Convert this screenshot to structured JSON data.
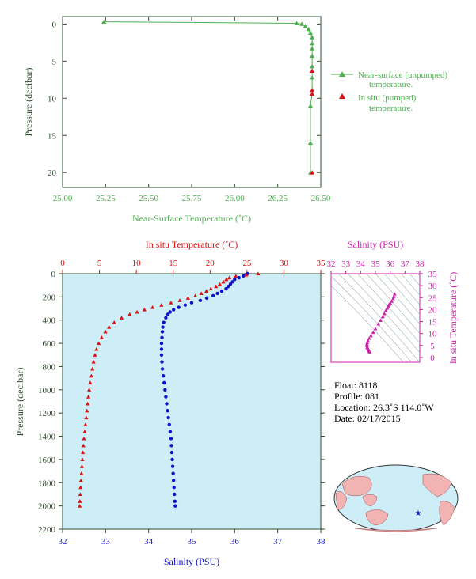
{
  "colors": {
    "green": "#4caf50",
    "red": "#dd1111",
    "blue": "#1111cc",
    "magenta": "#cc22aa",
    "axis_dark": "#2f4f2f",
    "plot_bg": "#cdeef7",
    "ts_line": "#9fb0b8"
  },
  "chart_data": [
    {
      "type": "line",
      "id": "near-surface",
      "xlabel": "Near-Surface Temperature (˚C)",
      "ylabel": "Pressure (decibar)",
      "xlim": [
        25.0,
        26.5
      ],
      "ylim": [
        22,
        -1
      ],
      "xticks": [
        "25.00",
        "25.25",
        "25.50",
        "25.75",
        "26.00",
        "26.25",
        "26.50"
      ],
      "xtick_values": [
        25.0,
        25.25,
        25.5,
        25.75,
        26.0,
        26.25,
        26.5
      ],
      "yticks": [
        "0",
        "5",
        "10",
        "15",
        "20"
      ],
      "ytick_values": [
        0,
        5,
        10,
        15,
        20
      ],
      "series": [
        {
          "name": "Near-surface (unpumped) temperature.",
          "marker": "triangle",
          "line": true,
          "color": "green",
          "x": [
            25.24,
            26.36,
            26.39,
            26.41,
            26.43,
            26.44,
            26.45,
            26.45,
            26.45,
            26.45,
            26.45,
            26.45,
            26.45,
            26.44,
            26.44,
            26.44
          ],
          "y": [
            -0.3,
            -0.1,
            0.0,
            0.3,
            0.7,
            1.2,
            1.8,
            2.6,
            3.3,
            4.3,
            5.7,
            7.2,
            9.4,
            11.0,
            16.0,
            20.0
          ]
        },
        {
          "name": "In situ (pumped) temperature.",
          "marker": "triangle",
          "line": false,
          "color": "red",
          "x": [
            26.45,
            26.45,
            26.45,
            26.45
          ],
          "y": [
            6.3,
            8.9,
            9.4,
            20.0
          ]
        }
      ],
      "legend": [
        "Near-surface (unpumped)",
        "temperature.",
        "In situ (pumped)",
        "temperature."
      ]
    },
    {
      "type": "line",
      "id": "profile",
      "title_top": "In situ Temperature (˚C)",
      "xlabel": "Salinity (PSU)",
      "ylabel": "Pressure (decibar)",
      "temp_lim": [
        0,
        35
      ],
      "sal_lim": [
        32,
        38
      ],
      "ylim": [
        0,
        2200
      ],
      "temp_ticks": [
        "0",
        "5",
        "10",
        "15",
        "20",
        "25",
        "30",
        "35"
      ],
      "temp_tick_values": [
        0,
        5,
        10,
        15,
        20,
        25,
        30,
        35
      ],
      "sal_ticks": [
        "32",
        "33",
        "34",
        "35",
        "36",
        "37",
        "38"
      ],
      "sal_tick_values": [
        32,
        33,
        34,
        35,
        36,
        37,
        38
      ],
      "yticks": [
        "0",
        "200",
        "400",
        "600",
        "800",
        "1000",
        "1200",
        "1400",
        "1600",
        "1800",
        "2000",
        "2200"
      ],
      "ytick_values": [
        0,
        200,
        400,
        600,
        800,
        1000,
        1200,
        1400,
        1600,
        1800,
        2000,
        2200
      ],
      "series": [
        {
          "name": "In situ Temperature (˚C)",
          "color": "red",
          "marker": "triangle",
          "p": [
            0,
            10,
            20,
            35,
            50,
            70,
            90,
            110,
            130,
            150,
            170,
            190,
            210,
            230,
            250,
            270,
            290,
            310,
            330,
            350,
            380,
            420,
            460,
            500,
            550,
            600,
            650,
            700,
            760,
            820,
            880,
            940,
            1000,
            1060,
            1120,
            1180,
            1240,
            1300,
            1360,
            1420,
            1480,
            1540,
            1600,
            1660,
            1720,
            1780,
            1840,
            1900,
            1960,
            2000
          ],
          "v": [
            26.5,
            24.9,
            23.5,
            22.6,
            22.2,
            21.8,
            21.3,
            20.8,
            20.1,
            19.5,
            18.8,
            18.0,
            17.0,
            15.9,
            14.7,
            13.4,
            12.2,
            11.1,
            10.1,
            9.1,
            8.0,
            7.0,
            6.3,
            5.8,
            5.3,
            4.9,
            4.6,
            4.4,
            4.2,
            4.05,
            3.9,
            3.75,
            3.6,
            3.5,
            3.4,
            3.3,
            3.2,
            3.1,
            3.0,
            2.9,
            2.82,
            2.75,
            2.68,
            2.62,
            2.56,
            2.5,
            2.45,
            2.4,
            2.35,
            2.32
          ]
        },
        {
          "name": "Salinity (PSU)",
          "color": "blue",
          "marker": "circle",
          "p": [
            0,
            10,
            20,
            35,
            50,
            70,
            90,
            110,
            130,
            150,
            170,
            190,
            210,
            230,
            250,
            270,
            290,
            310,
            330,
            350,
            380,
            420,
            460,
            500,
            550,
            600,
            650,
            700,
            760,
            820,
            880,
            940,
            1000,
            1060,
            1120,
            1180,
            1240,
            1300,
            1360,
            1420,
            1480,
            1540,
            1600,
            1660,
            1720,
            1780,
            1840,
            1900,
            1960,
            2000
          ],
          "v": [
            36.3,
            36.25,
            36.2,
            36.1,
            36.0,
            35.95,
            35.9,
            35.85,
            35.8,
            35.7,
            35.6,
            35.5,
            35.35,
            35.2,
            35.0,
            34.85,
            34.7,
            34.58,
            34.5,
            34.45,
            34.4,
            34.35,
            34.33,
            34.32,
            34.31,
            34.3,
            34.3,
            34.3,
            34.31,
            34.32,
            34.34,
            34.36,
            34.38,
            34.4,
            34.42,
            34.44,
            34.46,
            34.48,
            34.5,
            34.52,
            34.53,
            34.54,
            34.55,
            34.56,
            34.57,
            34.58,
            34.59,
            34.6,
            34.61,
            34.62
          ]
        }
      ]
    },
    {
      "type": "scatter",
      "id": "ts-diagram",
      "title_top": "Salinity (PSU)",
      "ylabel": "In situ Temperature (˚C)",
      "xlim": [
        32,
        38
      ],
      "ylim": [
        -2,
        35
      ],
      "xticks": [
        "32",
        "33",
        "34",
        "35",
        "36",
        "37",
        "38"
      ],
      "xtick_values": [
        32,
        33,
        34,
        35,
        36,
        37,
        38
      ],
      "yticks": [
        "0",
        "5",
        "10",
        "15",
        "20",
        "25",
        "30",
        "35"
      ],
      "ytick_values": [
        0,
        5,
        10,
        15,
        20,
        25,
        30,
        35
      ],
      "points": [
        [
          34.62,
          2.3
        ],
        [
          34.6,
          2.5
        ],
        [
          34.58,
          2.8
        ],
        [
          34.55,
          3.1
        ],
        [
          34.52,
          3.5
        ],
        [
          34.48,
          3.9
        ],
        [
          34.45,
          4.3
        ],
        [
          34.42,
          4.9
        ],
        [
          34.42,
          5.5
        ],
        [
          34.45,
          6.2
        ],
        [
          34.5,
          7.0
        ],
        [
          34.58,
          8.0
        ],
        [
          34.7,
          9.1
        ],
        [
          34.85,
          10.5
        ],
        [
          35.0,
          12.0
        ],
        [
          35.2,
          14.0
        ],
        [
          35.35,
          15.5
        ],
        [
          35.5,
          17.0
        ],
        [
          35.6,
          18.3
        ],
        [
          35.7,
          19.6
        ],
        [
          35.8,
          20.6
        ],
        [
          35.85,
          21.3
        ],
        [
          35.9,
          21.9
        ],
        [
          35.95,
          22.3
        ],
        [
          36.0,
          22.7
        ],
        [
          36.1,
          23.5
        ],
        [
          36.2,
          24.6
        ],
        [
          36.25,
          25.5
        ],
        [
          36.3,
          26.5
        ]
      ]
    }
  ],
  "info": {
    "float": "Float:  8118",
    "profile": "Profile:  081",
    "location": "Location:  26.3˚S  114.0˚W",
    "date": "Date:  02/17/2015"
  },
  "map": {
    "marker": "★",
    "lon": -114.0,
    "lat": -26.3
  }
}
